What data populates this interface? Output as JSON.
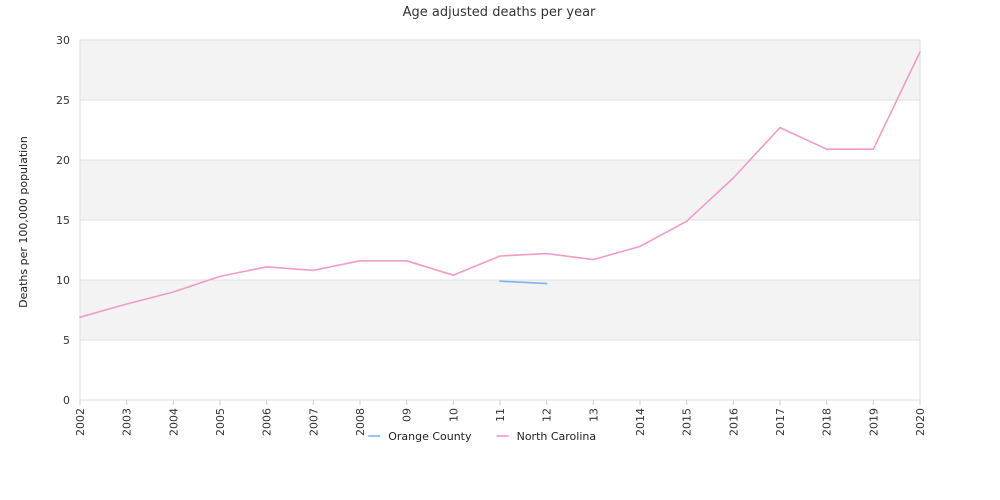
{
  "chart_data": {
    "type": "line",
    "title": "Age adjusted deaths per year",
    "xlabel": "",
    "ylabel": "Deaths per 100,000 population",
    "ylim": [
      0,
      30
    ],
    "yticks": [
      0,
      5,
      10,
      15,
      20,
      25,
      30
    ],
    "grid": true,
    "legend_position": "bottom",
    "categories": [
      "2002",
      "2003",
      "2004",
      "2005",
      "2006",
      "2007",
      "2008",
      "09",
      "10",
      "11",
      "12",
      "13",
      "2014",
      "2015",
      "2016",
      "2017",
      "2018",
      "2019",
      "2020"
    ],
    "series": [
      {
        "name": "Orange County",
        "color": "#7fb2f0",
        "values": [
          null,
          null,
          null,
          null,
          null,
          null,
          null,
          null,
          null,
          9.9,
          9.7,
          null,
          null,
          null,
          null,
          null,
          null,
          null,
          null
        ]
      },
      {
        "name": "North Carolina",
        "color": "#f29ac8",
        "values": [
          6.9,
          8.0,
          9.0,
          10.3,
          11.1,
          10.8,
          11.6,
          11.6,
          10.4,
          12.0,
          12.2,
          11.7,
          12.8,
          14.9,
          18.5,
          22.7,
          20.9,
          20.9,
          29.0
        ]
      }
    ],
    "band_colors": [
      "#f3f3f3",
      "#ffffff"
    ]
  }
}
